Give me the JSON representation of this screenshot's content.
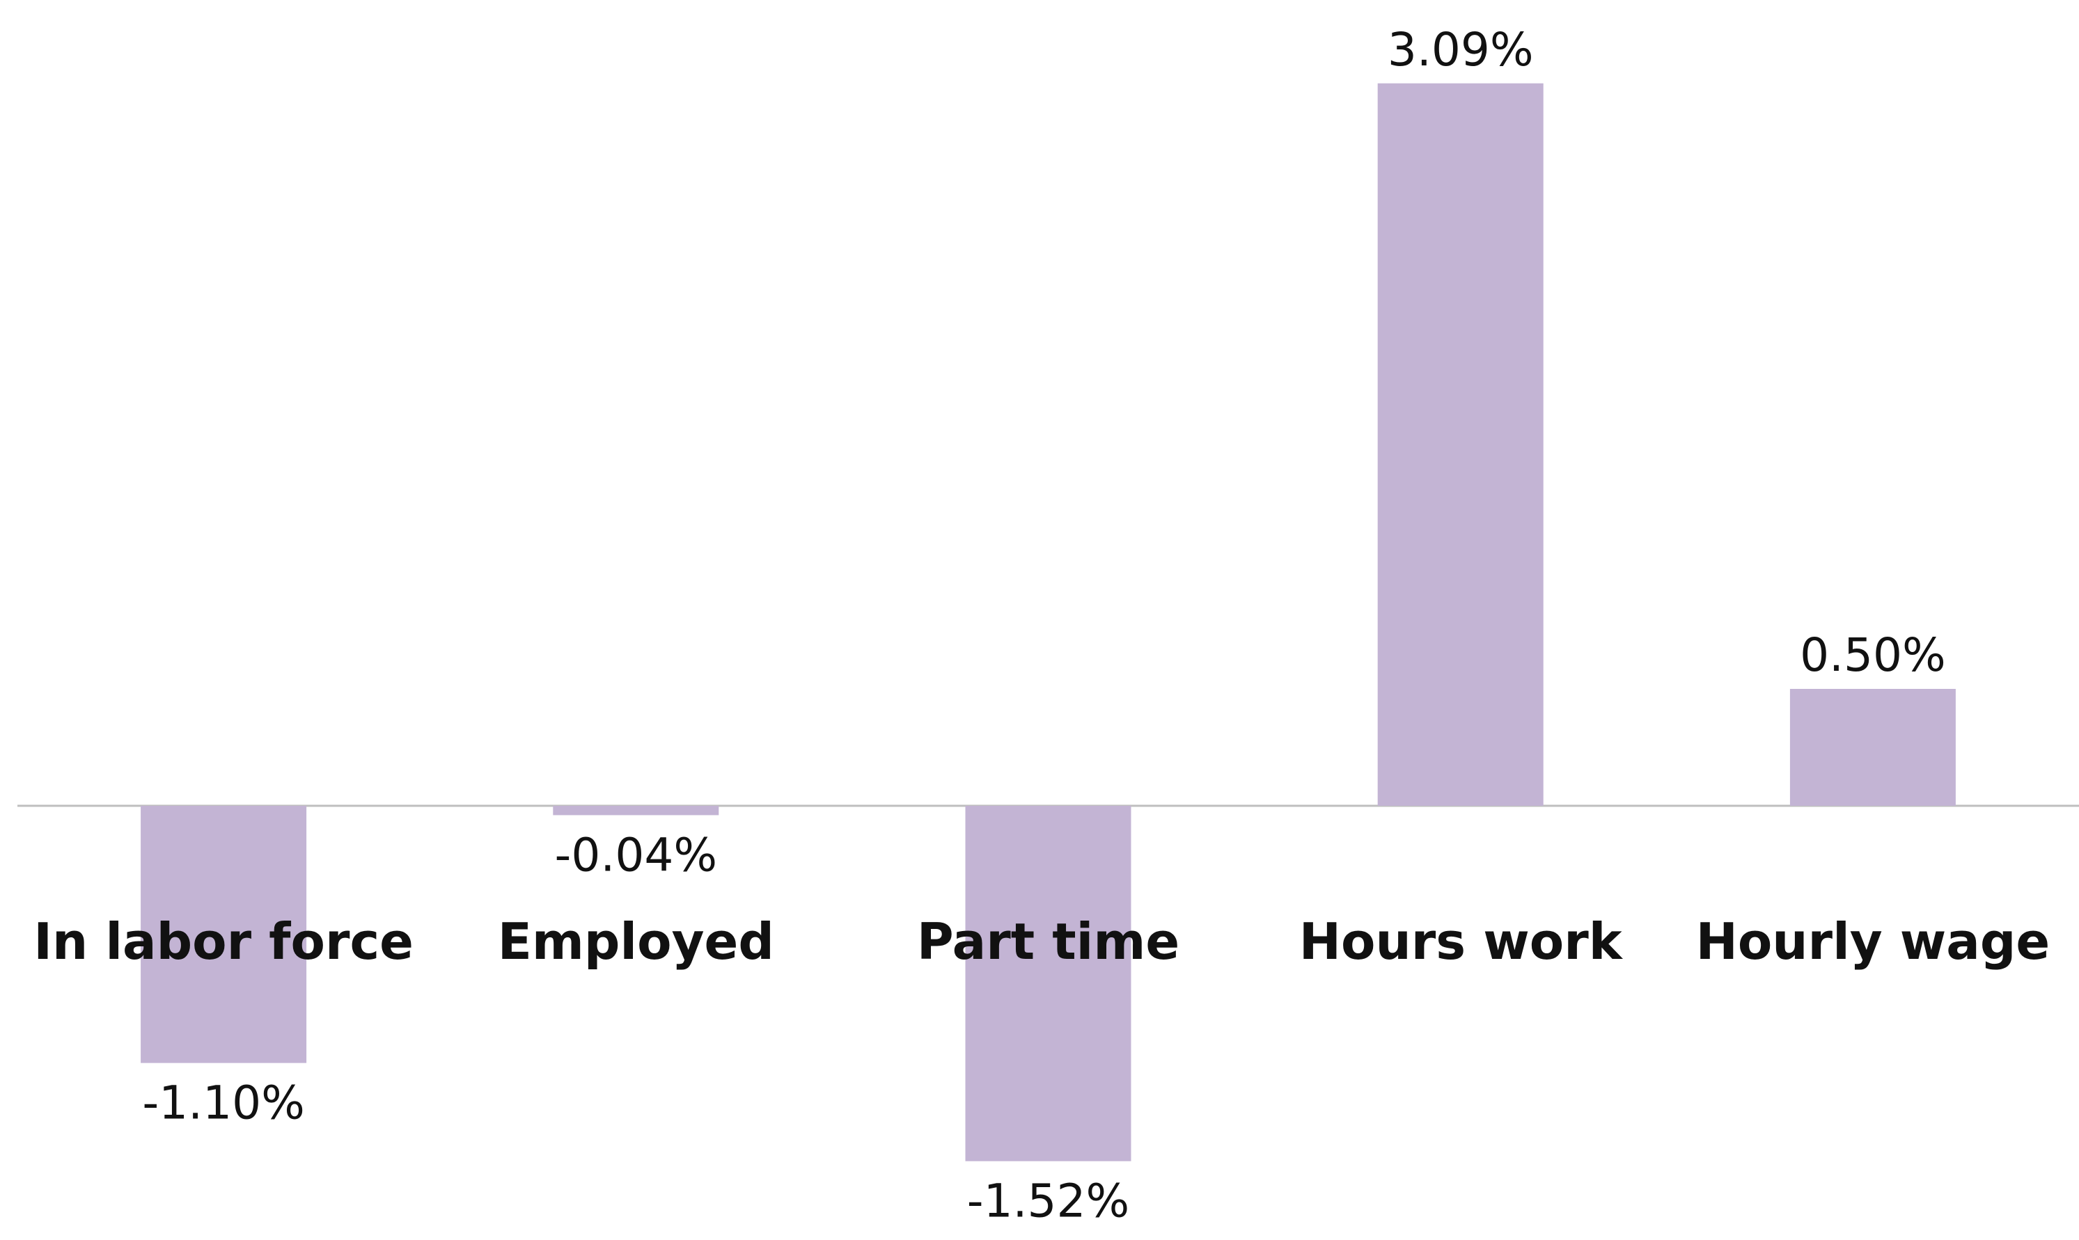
{
  "chart_data": {
    "type": "bar",
    "title": "",
    "xlabel": "",
    "ylabel": "",
    "categories": [
      "In labor force",
      "Employed",
      "Part time",
      "Hours work",
      "Hourly wage"
    ],
    "values": [
      -1.1,
      -0.04,
      -1.52,
      3.09,
      0.5
    ],
    "value_labels": [
      "-1.10%",
      "-0.04%",
      "-1.52%",
      "3.09%",
      "0.50%"
    ],
    "value_unit": "%",
    "ylim": [
      -1.52,
      3.09
    ],
    "grid": false,
    "legend": "none",
    "bar_color": "#c3b4d4",
    "zero_line_color": "#bfbfbf",
    "text_color": "#111111"
  }
}
